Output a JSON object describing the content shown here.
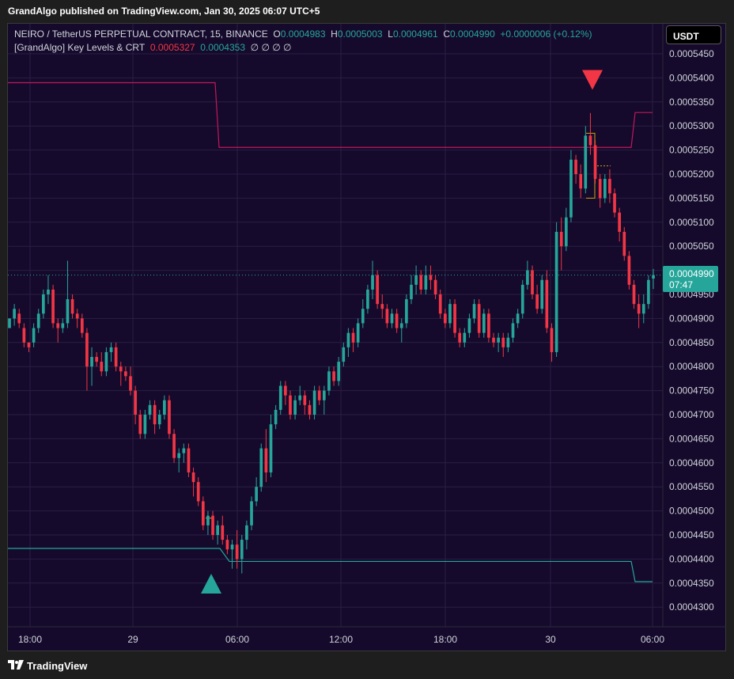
{
  "header": {
    "publisher_text": "GrandAlgo published on TradingView.com, Jan 30, 2025 06:07 UTC+5"
  },
  "legend": {
    "symbol": "NEIRO / TetherUS PERPETUAL CONTRACT, 15, BINANCE",
    "o_label": "O",
    "o_value": "0.0004983",
    "h_label": "H",
    "h_value": "0.0005003",
    "l_label": "L",
    "l_value": "0.0004961",
    "c_label": "C",
    "c_value": "0.0004990",
    "change": "+0.0000006 (+0.12%)",
    "indicator_name": "[GrandAlgo] Key Levels & CRT",
    "indicator_val1": "0.0005327",
    "indicator_val2": "0.0004353",
    "indicator_extra": "∅ ∅ ∅ ∅"
  },
  "currency_button": "USDT",
  "price_tag": {
    "price": "0.0004990",
    "countdown": "07:47"
  },
  "footer": {
    "brand": "TradingView"
  },
  "colors": {
    "background": "#150a2b",
    "grid": "#2a1f44",
    "up": "#26a69a",
    "down": "#f23645",
    "level_high": "#c2185b",
    "level_low": "#26a69a",
    "text": "#d1d4dc"
  },
  "chart_data": {
    "type": "candlestick",
    "y_ticks": [
      "0.0005450",
      "0.0005400",
      "0.0005350",
      "0.0005300",
      "0.0005250",
      "0.0005200",
      "0.0005150",
      "0.0005100",
      "0.0005050",
      "0.0005000",
      "0.0004950",
      "0.0004900",
      "0.0004850",
      "0.0004800",
      "0.0004750",
      "0.0004700",
      "0.0004650",
      "0.0004600",
      "0.0004550",
      "0.0004500",
      "0.0004450",
      "0.0004400",
      "0.0004350",
      "0.0004300"
    ],
    "x_ticks": [
      "18:00",
      "29",
      "06:00",
      "12:00",
      "18:00",
      "30",
      "06:00"
    ],
    "ylim": [
      0.0004262,
      0.0005509
    ],
    "markers": [
      {
        "type": "sell",
        "shape": "triangle-down",
        "color": "#f23645",
        "price": 0.0005395,
        "time": "Jan 30 ~02:30"
      },
      {
        "type": "buy",
        "shape": "triangle-up",
        "color": "#26a69a",
        "price": 0.0004348,
        "time": "Jan 29 ~05:00"
      }
    ],
    "candles": [
      [
        0.000488,
        0.00049,
        0.000488,
        0.00049
      ],
      [
        0.00049,
        0.000493,
        0.0004885,
        0.000492
      ],
      [
        0.000491,
        0.000492,
        0.000488,
        0.000489
      ],
      [
        0.000488,
        0.000489,
        0.000484,
        0.000485
      ],
      [
        0.000485,
        0.000485,
        0.000483,
        0.000484
      ],
      [
        0.000485,
        0.000489,
        0.000484,
        0.000488
      ],
      [
        0.000488,
        0.000492,
        0.000487,
        0.000491
      ],
      [
        0.000491,
        0.000496,
        0.00049,
        0.000495
      ],
      [
        0.000495,
        0.000499,
        0.000493,
        0.000496
      ],
      [
        0.000496,
        0.000497,
        0.000488,
        0.000489
      ],
      [
        0.000489,
        0.00049,
        0.000485,
        0.000488
      ],
      [
        0.000488,
        0.00049,
        0.000487,
        0.000489
      ],
      [
        0.000489,
        0.000502,
        0.000488,
        0.000494
      ],
      [
        0.000494,
        0.000495,
        0.00049,
        0.000491
      ],
      [
        0.000491,
        0.000492,
        0.000488,
        0.00049
      ],
      [
        0.00049,
        0.000491,
        0.000486,
        0.000487
      ],
      [
        0.000487,
        0.000488,
        0.000475,
        0.00048
      ],
      [
        0.00048,
        0.000484,
        0.000476,
        0.000482
      ],
      [
        0.000482,
        0.000483,
        0.00048,
        0.000481
      ],
      [
        0.000481,
        0.000483,
        0.000478,
        0.000479
      ],
      [
        0.000479,
        0.000484,
        0.000478,
        0.000483
      ],
      [
        0.000483,
        0.000485,
        0.000481,
        0.000484
      ],
      [
        0.000484,
        0.000485,
        0.000479,
        0.00048
      ],
      [
        0.00048,
        0.000481,
        0.000476,
        0.000479
      ],
      [
        0.000479,
        0.00048,
        0.000477,
        0.000478
      ],
      [
        0.000478,
        0.00048,
        0.000474,
        0.000475
      ],
      [
        0.000475,
        0.000476,
        0.000468,
        0.00047
      ],
      [
        0.00047,
        0.000471,
        0.000465,
        0.000466
      ],
      [
        0.000466,
        0.000471,
        0.000465,
        0.00047
      ],
      [
        0.00047,
        0.000473,
        0.000469,
        0.000472
      ],
      [
        0.000472,
        0.000473,
        0.000466,
        0.000468
      ],
      [
        0.000468,
        0.000471,
        0.000467,
        0.00047
      ],
      [
        0.00047,
        0.000474,
        0.000469,
        0.000473
      ],
      [
        0.000473,
        0.000474,
        0.000465,
        0.000466
      ],
      [
        0.000466,
        0.000467,
        0.00046,
        0.000461
      ],
      [
        0.000461,
        0.000463,
        0.000458,
        0.000462
      ],
      [
        0.000462,
        0.000464,
        0.00046,
        0.000463
      ],
      [
        0.000463,
        0.000464,
        0.000457,
        0.000458
      ],
      [
        0.000458,
        0.000459,
        0.000453,
        0.000456
      ],
      [
        0.000456,
        0.000457,
        0.000451,
        0.000452
      ],
      [
        0.000452,
        0.000453,
        0.000446,
        0.000447
      ],
      [
        0.000447,
        0.00045,
        0.000445,
        0.000449
      ],
      [
        0.000449,
        0.00045,
        0.000444,
        0.000445
      ],
      [
        0.000445,
        0.000448,
        0.000443,
        0.000447
      ],
      [
        0.000447,
        0.000449,
        0.000443,
        0.000444
      ],
      [
        0.000444,
        0.000445,
        0.000441,
        0.000442
      ],
      [
        0.000442,
        0.000444,
        0.000438,
        0.000443
      ],
      [
        0.000443,
        0.000446,
        0.000438,
        0.00044
      ],
      [
        0.00044,
        0.000445,
        0.000437,
        0.000444
      ],
      [
        0.000444,
        0.000448,
        0.000442,
        0.000447
      ],
      [
        0.000447,
        0.000453,
        0.000446,
        0.000452
      ],
      [
        0.000452,
        0.000457,
        0.000451,
        0.000455
      ],
      [
        0.000455,
        0.000464,
        0.000454,
        0.000463
      ],
      [
        0.000463,
        0.000467,
        0.000456,
        0.000458
      ],
      [
        0.000458,
        0.00047,
        0.000457,
        0.000468
      ],
      [
        0.000468,
        0.000472,
        0.000467,
        0.000471
      ],
      [
        0.000471,
        0.000477,
        0.00047,
        0.000476
      ],
      [
        0.000476,
        0.000477,
        0.000472,
        0.000474
      ],
      [
        0.000474,
        0.000475,
        0.000469,
        0.00047
      ],
      [
        0.00047,
        0.000474,
        0.000469,
        0.000473
      ],
      [
        0.000473,
        0.000476,
        0.000472,
        0.000474
      ],
      [
        0.000474,
        0.000475,
        0.00047,
        0.000472
      ],
      [
        0.000472,
        0.000473,
        0.000469,
        0.00047
      ],
      [
        0.00047,
        0.000476,
        0.000469,
        0.000475
      ],
      [
        0.000475,
        0.000476,
        0.000472,
        0.000473
      ],
      [
        0.000473,
        0.000476,
        0.00047,
        0.000475
      ],
      [
        0.000475,
        0.00048,
        0.000474,
        0.000479
      ],
      [
        0.000479,
        0.00048,
        0.000476,
        0.000477
      ],
      [
        0.000477,
        0.000482,
        0.000476,
        0.000481
      ],
      [
        0.000481,
        0.000485,
        0.00048,
        0.000484
      ],
      [
        0.000484,
        0.000488,
        0.000482,
        0.000487
      ],
      [
        0.000487,
        0.000488,
        0.000483,
        0.000485
      ],
      [
        0.000485,
        0.00049,
        0.000484,
        0.000489
      ],
      [
        0.000489,
        0.000494,
        0.000488,
        0.000492
      ],
      [
        0.000492,
        0.000497,
        0.000491,
        0.000496
      ],
      [
        0.000496,
        0.000502,
        0.000494,
        0.000499
      ],
      [
        0.000499,
        0.0005,
        0.000492,
        0.000493
      ],
      [
        0.000493,
        0.000495,
        0.00049,
        0.000492
      ],
      [
        0.000492,
        0.000493,
        0.000488,
        0.000489
      ],
      [
        0.000489,
        0.000492,
        0.000488,
        0.000491
      ],
      [
        0.000491,
        0.000492,
        0.000487,
        0.000488
      ],
      [
        0.000488,
        0.00049,
        0.000485,
        0.000489
      ],
      [
        0.000489,
        0.000495,
        0.000488,
        0.000494
      ],
      [
        0.000494,
        0.000499,
        0.000493,
        0.000497
      ],
      [
        0.000497,
        0.000501,
        0.000495,
        0.000499
      ],
      [
        0.000499,
        0.0005,
        0.000495,
        0.000496
      ],
      [
        0.000496,
        0.000501,
        0.000495,
        0.000499
      ],
      [
        0.000499,
        0.000501,
        0.000496,
        0.000498
      ],
      [
        0.000498,
        0.000499,
        0.000494,
        0.000495
      ],
      [
        0.000495,
        0.000496,
        0.00049,
        0.000491
      ],
      [
        0.000491,
        0.000492,
        0.000488,
        0.000489
      ],
      [
        0.000489,
        0.000494,
        0.000488,
        0.000493
      ],
      [
        0.000493,
        0.000494,
        0.000486,
        0.000487
      ],
      [
        0.000487,
        0.000488,
        0.000484,
        0.000485
      ],
      [
        0.000485,
        0.000488,
        0.000484,
        0.000487
      ],
      [
        0.000487,
        0.000491,
        0.000486,
        0.00049
      ],
      [
        0.00049,
        0.000494,
        0.000489,
        0.000493
      ],
      [
        0.000493,
        0.000494,
        0.000486,
        0.000487
      ],
      [
        0.000487,
        0.000492,
        0.000486,
        0.000491
      ],
      [
        0.000491,
        0.000492,
        0.000485,
        0.000486
      ],
      [
        0.000486,
        0.000487,
        0.000484,
        0.000485
      ],
      [
        0.000485,
        0.000487,
        0.000483,
        0.000486
      ],
      [
        0.000486,
        0.000487,
        0.000482,
        0.000484
      ],
      [
        0.000484,
        0.000487,
        0.000483,
        0.000486
      ],
      [
        0.000486,
        0.00049,
        0.000485,
        0.000489
      ],
      [
        0.000489,
        0.000492,
        0.000488,
        0.000491
      ],
      [
        0.000491,
        0.000498,
        0.00049,
        0.000497
      ],
      [
        0.000497,
        0.000502,
        0.000496,
        0.0005
      ],
      [
        0.0005,
        0.000501,
        0.000494,
        0.000495
      ],
      [
        0.000495,
        0.000497,
        0.000491,
        0.000492
      ],
      [
        0.000492,
        0.000499,
        0.000491,
        0.000498
      ],
      [
        0.000498,
        0.0005,
        0.000487,
        0.000488
      ],
      [
        0.000488,
        0.000489,
        0.000481,
        0.000483
      ],
      [
        0.000483,
        0.00051,
        0.000482,
        0.000508
      ],
      [
        0.000508,
        0.000511,
        0.0005,
        0.000505
      ],
      [
        0.000505,
        0.000513,
        0.000504,
        0.000511
      ],
      [
        0.000511,
        0.000525,
        0.00051,
        0.000523
      ],
      [
        0.000523,
        0.000524,
        0.000518,
        0.00052
      ],
      [
        0.00052,
        0.000522,
        0.000515,
        0.000517
      ],
      [
        0.000517,
        0.00053,
        0.000516,
        0.000528
      ],
      [
        0.000528,
        0.0005327,
        0.000524,
        0.000526
      ],
      [
        0.000526,
        0.000527,
        0.000518,
        0.000519
      ],
      [
        0.000519,
        0.00052,
        0.000513,
        0.000515
      ],
      [
        0.000515,
        0.00052,
        0.000514,
        0.000519
      ],
      [
        0.000519,
        0.000521,
        0.000514,
        0.000516
      ],
      [
        0.000516,
        0.000517,
        0.000511,
        0.000512
      ],
      [
        0.000512,
        0.000513,
        0.000506,
        0.000508
      ],
      [
        0.000508,
        0.000509,
        0.000502,
        0.000503
      ],
      [
        0.000503,
        0.000504,
        0.000496,
        0.000497
      ],
      [
        0.000497,
        0.000498,
        0.000492,
        0.000493
      ],
      [
        0.000493,
        0.000495,
        0.000488,
        0.000491
      ],
      [
        0.000491,
        0.000495,
        0.000489,
        0.000493
      ],
      [
        0.000493,
        0.000499,
        0.000492,
        0.000498
      ],
      [
        0.0004983,
        0.0005003,
        0.0004961,
        0.000499
      ]
    ]
  }
}
